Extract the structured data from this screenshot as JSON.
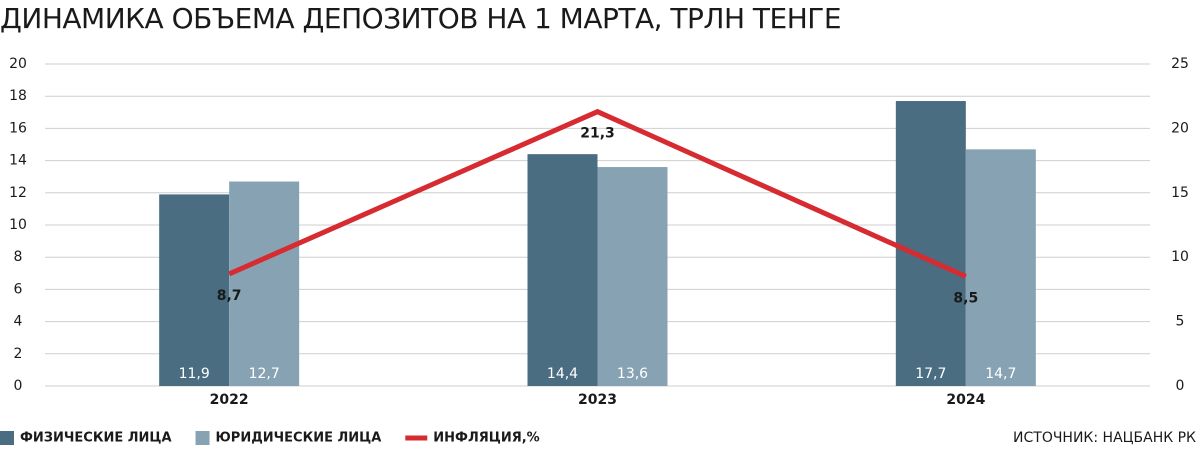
{
  "chart_data": {
    "type": "bar",
    "title": "ДИНАМИКА ОБЪЕМА ДЕПОЗИТОВ НА 1 МАРТА, ТРЛН ТЕНГЕ",
    "source": "ИСТОЧНИК: НАЦБАНК РК",
    "categories": [
      "2022",
      "2023",
      "2024"
    ],
    "series": [
      {
        "name": "ФИЗИЧЕСКИЕ ЛИЦА",
        "color": "#4a6d82",
        "values": [
          11.9,
          14.4,
          17.7
        ],
        "value_labels": [
          "11,9",
          "14,4",
          "17,7"
        ]
      },
      {
        "name": "ЮРИДИЧЕСКИЕ ЛИЦА",
        "color": "#87a3b3",
        "values": [
          12.7,
          13.6,
          14.7
        ],
        "value_labels": [
          "12,7",
          "13,6",
          "14,7"
        ]
      },
      {
        "name": "ИНФЛЯЦИЯ,%",
        "color": "#d62b30",
        "type": "line",
        "axis": "y2",
        "values": [
          8.7,
          21.3,
          8.5
        ],
        "value_labels": [
          "8,7",
          "21,3",
          "8,5"
        ]
      }
    ],
    "ylim": [
      0,
      20
    ],
    "yticks": [
      0,
      2,
      4,
      6,
      8,
      10,
      12,
      14,
      16,
      18,
      20
    ],
    "y2lim": [
      0,
      25
    ],
    "y2ticks": [
      0,
      5,
      10,
      15,
      20,
      25
    ],
    "grid": true,
    "legend": "bottom-left"
  }
}
